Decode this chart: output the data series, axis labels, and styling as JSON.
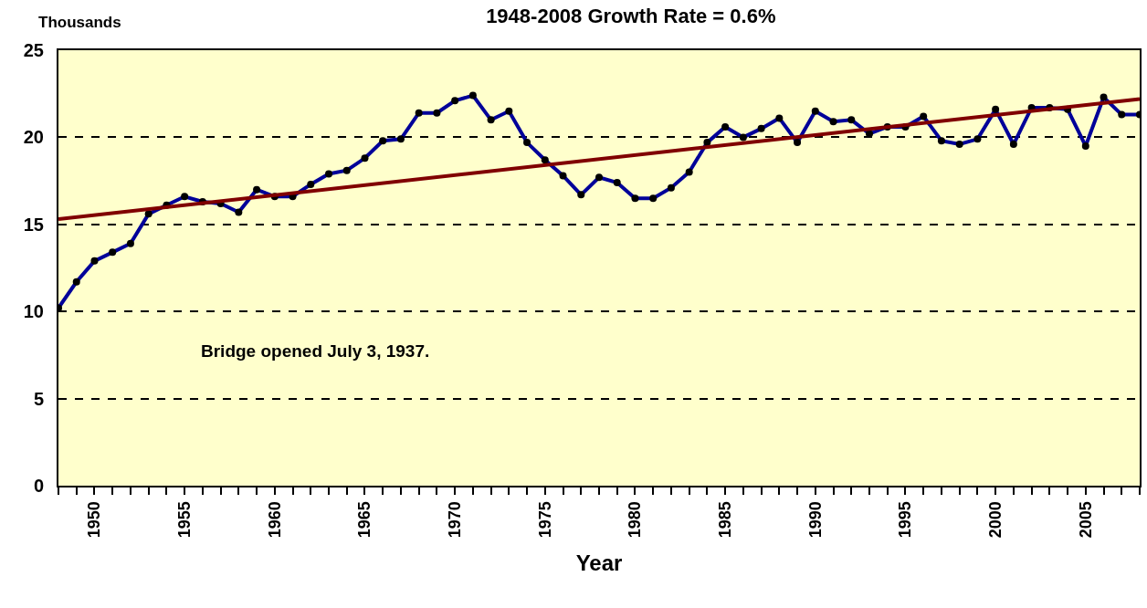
{
  "chart_data": {
    "type": "line",
    "title": "1948-2008 Growth Rate = 0.6%",
    "ylabel": "Thousands",
    "xlabel": "Year",
    "annotations": [
      "Bridge opened July 3, 1937."
    ],
    "series": [
      {
        "color": "#000099",
        "marker": "circle",
        "x": [
          1948,
          1949,
          1950,
          1951,
          1952,
          1953,
          1954,
          1955,
          1956,
          1957,
          1958,
          1959,
          1960,
          1961,
          1962,
          1963,
          1964,
          1965,
          1966,
          1967,
          1968,
          1969,
          1970,
          1971,
          1972,
          1973,
          1974,
          1975,
          1976,
          1977,
          1978,
          1979,
          1980,
          1981,
          1982,
          1983,
          1984,
          1985,
          1986,
          1987,
          1988,
          1989,
          1990,
          1991,
          1992,
          1993,
          1994,
          1995,
          1996,
          1997,
          1998,
          1999,
          2000,
          2001,
          2002,
          2003,
          2004,
          2005,
          2006,
          2007,
          2008
        ],
        "values": [
          10.2,
          11.7,
          12.9,
          13.4,
          13.9,
          15.6,
          16.1,
          16.6,
          16.3,
          16.2,
          15.7,
          17.0,
          16.6,
          16.6,
          17.3,
          17.9,
          18.1,
          18.8,
          19.8,
          19.9,
          21.4,
          21.4,
          22.1,
          22.4,
          21.0,
          21.5,
          19.7,
          18.7,
          17.8,
          16.7,
          17.7,
          17.4,
          16.5,
          16.5,
          17.1,
          18.0,
          19.7,
          20.6,
          20.0,
          20.5,
          21.1,
          19.7,
          21.5,
          20.9,
          21.0,
          20.2,
          20.6,
          20.6,
          21.2,
          19.8,
          19.6,
          19.9,
          21.6,
          19.6,
          21.7,
          21.7,
          21.6,
          19.5,
          22.3,
          21.3,
          21.3
        ]
      },
      {
        "color": "#800000",
        "marker": "none",
        "x": [
          1948,
          2008
        ],
        "values": [
          15.3,
          22.2
        ]
      }
    ],
    "xlim": [
      1948,
      2008
    ],
    "xticks": [
      {
        "value": 1948,
        "label": null
      },
      {
        "value": 1949,
        "label": null
      },
      1950,
      {
        "value": 1951,
        "label": null
      },
      {
        "value": 1952,
        "label": null
      },
      {
        "value": 1953,
        "label": null
      },
      {
        "value": 1954,
        "label": null
      },
      1955,
      {
        "value": 1956,
        "label": null
      },
      {
        "value": 1957,
        "label": null
      },
      {
        "value": 1958,
        "label": null
      },
      {
        "value": 1959,
        "label": null
      },
      1960,
      {
        "value": 1961,
        "label": null
      },
      {
        "value": 1962,
        "label": null
      },
      {
        "value": 1963,
        "label": null
      },
      {
        "value": 1964,
        "label": null
      },
      1965,
      {
        "value": 1966,
        "label": null
      },
      {
        "value": 1967,
        "label": null
      },
      {
        "value": 1968,
        "label": null
      },
      {
        "value": 1969,
        "label": null
      },
      1970,
      {
        "value": 1971,
        "label": null
      },
      {
        "value": 1972,
        "label": null
      },
      {
        "value": 1973,
        "label": null
      },
      {
        "value": 1974,
        "label": null
      },
      1975,
      {
        "value": 1976,
        "label": null
      },
      {
        "value": 1977,
        "label": null
      },
      {
        "value": 1978,
        "label": null
      },
      {
        "value": 1979,
        "label": null
      },
      1980,
      {
        "value": 1981,
        "label": null
      },
      {
        "value": 1982,
        "label": null
      },
      {
        "value": 1983,
        "label": null
      },
      {
        "value": 1984,
        "label": null
      },
      1985,
      {
        "value": 1986,
        "label": null
      },
      {
        "value": 1987,
        "label": null
      },
      {
        "value": 1988,
        "label": null
      },
      {
        "value": 1989,
        "label": null
      },
      1990,
      {
        "value": 1991,
        "label": null
      },
      {
        "value": 1992,
        "label": null
      },
      {
        "value": 1993,
        "label": null
      },
      {
        "value": 1994,
        "label": null
      },
      1995,
      {
        "value": 1996,
        "label": null
      },
      {
        "value": 1997,
        "label": null
      },
      {
        "value": 1998,
        "label": null
      },
      {
        "value": 1999,
        "label": null
      },
      2000,
      {
        "value": 2001,
        "label": null
      },
      {
        "value": 2002,
        "label": null
      },
      {
        "value": 2003,
        "label": null
      },
      {
        "value": 2004,
        "label": null
      },
      2005,
      {
        "value": 2006,
        "label": null
      },
      {
        "value": 2007,
        "label": null
      },
      {
        "value": 2008,
        "label": null
      }
    ],
    "ylim": [
      0,
      25
    ],
    "yticks": [
      0,
      5,
      10,
      15,
      20,
      25
    ],
    "grid": "y",
    "line_style": "solid"
  }
}
